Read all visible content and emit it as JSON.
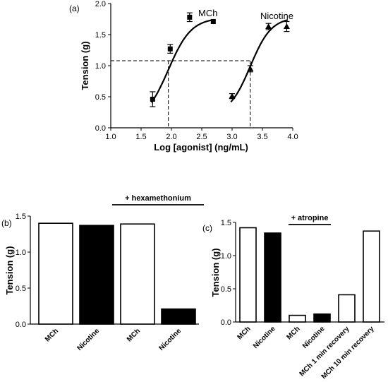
{
  "chart_data": [
    {
      "panel": "(a)",
      "type": "line",
      "xlabel": "Log [agonist] (ng/mL)",
      "ylabel": "Tension (g)",
      "xlim": [
        1.0,
        4.0
      ],
      "ylim": [
        0.0,
        2.0
      ],
      "xticks": [
        "1.0",
        "1.5",
        "2.0",
        "2.5",
        "3.0",
        "3.5",
        "4.0"
      ],
      "yticks": [
        "0.0",
        "0.5",
        "1.0",
        "1.5",
        "2.0"
      ],
      "series": [
        {
          "name": "MCh",
          "marker": "square",
          "points": [
            {
              "x": 1.69,
              "y": 0.46,
              "err": 0.12
            },
            {
              "x": 1.98,
              "y": 1.27,
              "err": 0.07
            },
            {
              "x": 2.3,
              "y": 1.78,
              "err": 0.07
            },
            {
              "x": 2.69,
              "y": 1.71,
              "err": 0.0
            }
          ],
          "fit": {
            "bottom": 0.1,
            "top": 1.77,
            "ec50": 1.95,
            "slope": 2.3
          }
        },
        {
          "name": "Nicotine",
          "marker": "triangle",
          "points": [
            {
              "x": 3.0,
              "y": 0.51,
              "err": 0.04
            },
            {
              "x": 3.3,
              "y": 0.95,
              "err": 0.05
            },
            {
              "x": 3.6,
              "y": 1.63,
              "err": 0.05
            },
            {
              "x": 3.9,
              "y": 1.63,
              "err": 0.08
            }
          ],
          "fit": {
            "bottom": 0.2,
            "top": 1.78,
            "ec50": 3.3,
            "slope": 2.5
          }
        }
      ],
      "reference": {
        "y": 1.08,
        "x_mch": 1.95,
        "x_nicotine": 3.3
      }
    },
    {
      "panel": "(b)",
      "type": "bar",
      "ylabel": "Tension (g)",
      "ylim": [
        0.0,
        1.5
      ],
      "yticks": [
        "0.0",
        "0.5",
        "1.0",
        "1.5"
      ],
      "categories": [
        "MCh",
        "Nicotine",
        "MCh",
        "Nicotine"
      ],
      "values": [
        1.4,
        1.37,
        1.39,
        0.21
      ],
      "fills": [
        "#ffffff",
        "#000000",
        "#ffffff",
        "#000000"
      ],
      "bracket": {
        "label": "+ hexamethonium",
        "from": 2,
        "to": 3
      }
    },
    {
      "panel": "(c)",
      "type": "bar",
      "ylabel": "Tension (g)",
      "ylim": [
        0.0,
        1.5
      ],
      "yticks": [
        "0.0",
        "0.5",
        "1.0",
        "1.5"
      ],
      "categories": [
        "MCh",
        "Nicotine",
        "MCh",
        "Nicotine",
        "MCh 1 min recovery",
        "MCh 10 min recovery"
      ],
      "values": [
        1.42,
        1.34,
        0.1,
        0.12,
        0.41,
        1.37
      ],
      "fills": [
        "#ffffff",
        "#000000",
        "#ffffff",
        "#000000",
        "#ffffff",
        "#ffffff"
      ],
      "bracket": {
        "label": "+ atropine",
        "from": 2,
        "to": 3
      }
    }
  ]
}
